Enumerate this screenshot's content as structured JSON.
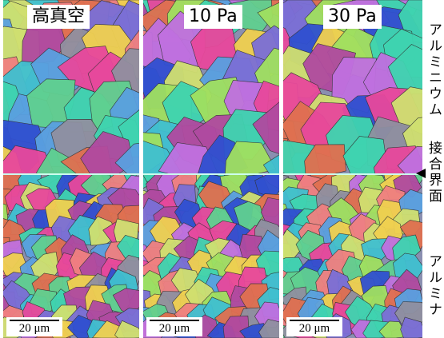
{
  "panels": [
    {
      "label": "高真空",
      "scale_bar": "20 μm"
    },
    {
      "label": "10 Pa",
      "scale_bar": "20 μm"
    },
    {
      "label": "30 Pa",
      "scale_bar": "20 μm"
    }
  ],
  "side_labels": {
    "top": "アルミニウム",
    "middle": "接合界面",
    "bottom": "アルミナ"
  }
}
